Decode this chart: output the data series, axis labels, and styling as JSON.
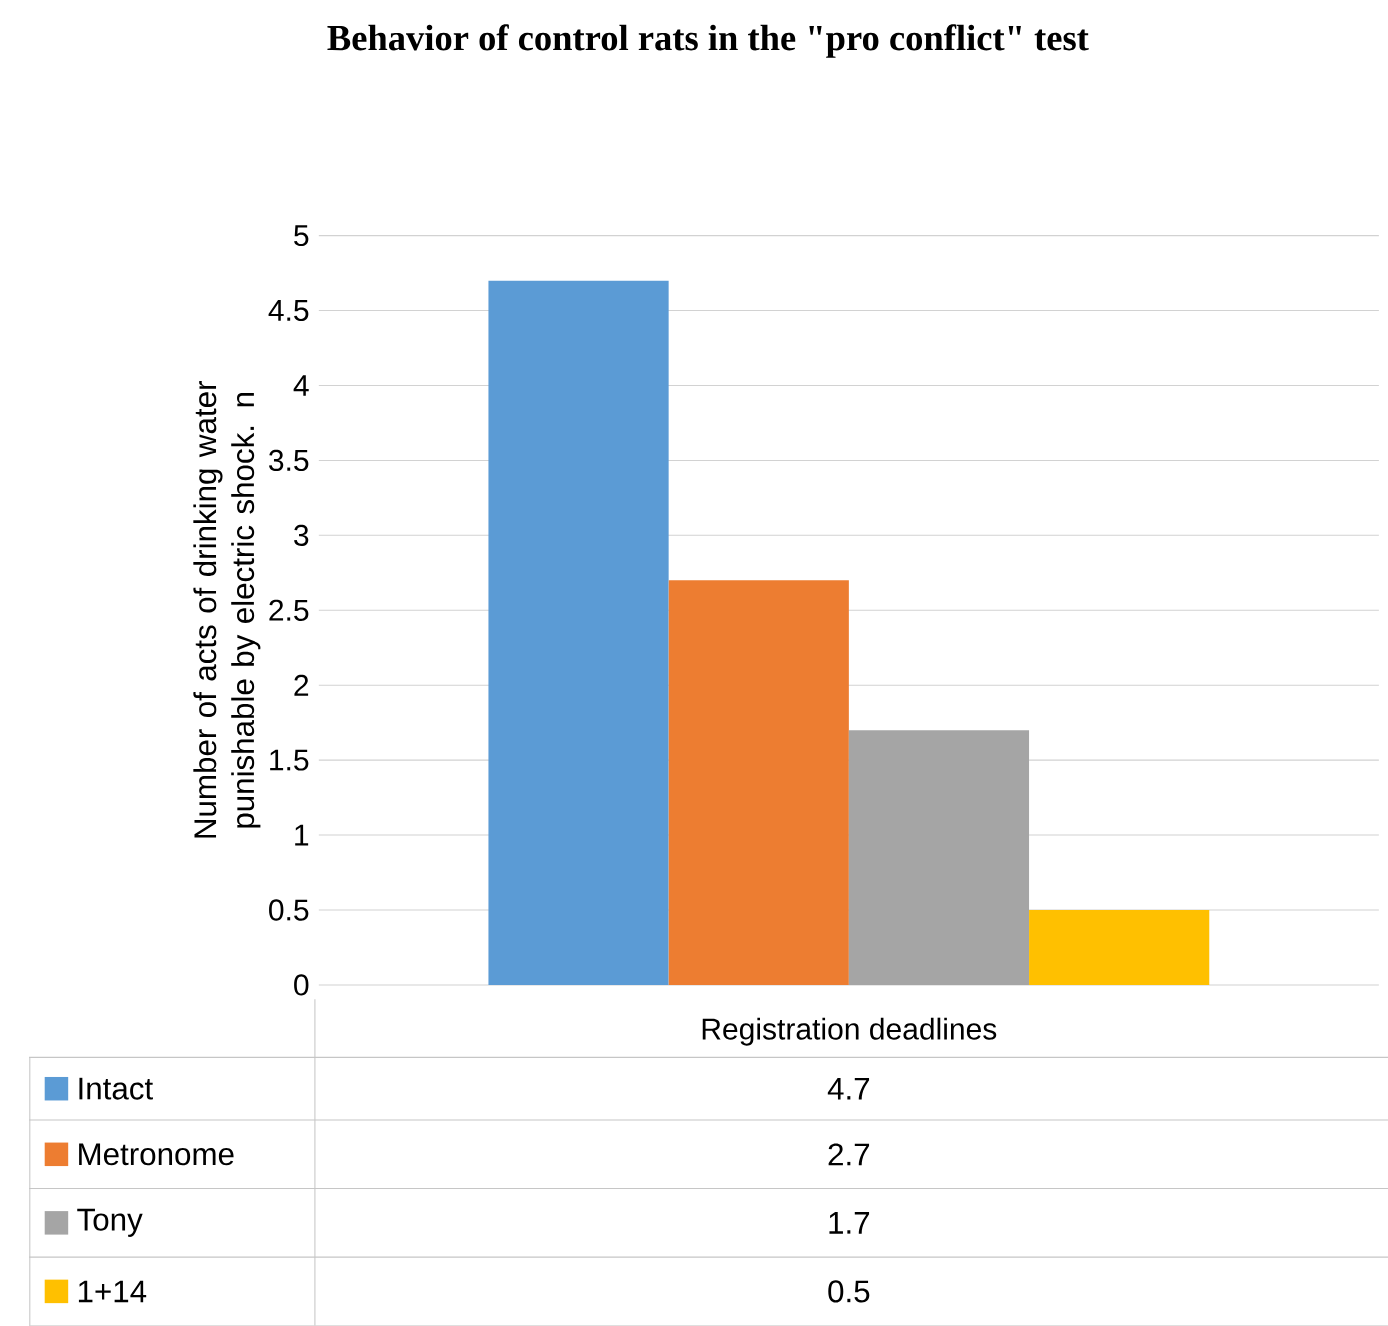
{
  "chart_data": {
    "type": "bar",
    "title": "Behavior of control rats in the \"pro conflict\" test",
    "ylabel": "Number of acts of drinking water punishable by electric shock. n",
    "categories": [
      "Registration deadlines"
    ],
    "series": [
      {
        "name": "Intact",
        "color": "#5b9bd5",
        "values": [
          4.7
        ]
      },
      {
        "name": "Metronome",
        "color": "#ed7d31",
        "values": [
          2.7
        ]
      },
      {
        "name": "Tony",
        "color": "#a5a5a5",
        "values": [
          1.7
        ]
      },
      {
        "name": "1+14",
        "color": "#ffc000",
        "values": [
          0.5
        ]
      }
    ],
    "ylim": [
      0,
      5
    ],
    "yticks": [
      0,
      0.5,
      1,
      1.5,
      2,
      2.5,
      3,
      3.5,
      4,
      4.5,
      5
    ],
    "annotations": [
      "4.7",
      "2.7",
      "1.7",
      "0.5"
    ],
    "grid": "y",
    "legend": "bottom"
  }
}
